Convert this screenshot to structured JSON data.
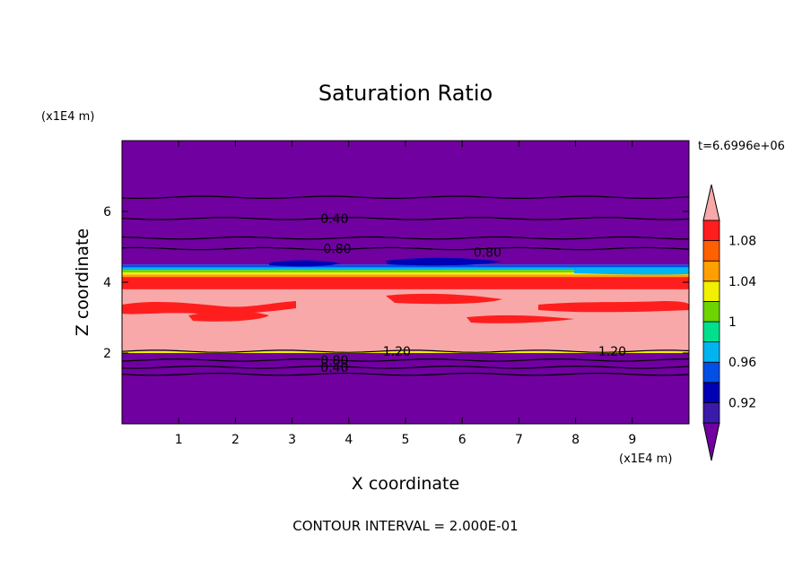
{
  "chart_data": {
    "type": "heatmap",
    "title": "Saturation Ratio",
    "xlabel": "X coordinate",
    "ylabel": "Z coordinate",
    "x_unit": "(x1E4 m)",
    "z_unit": "(x1E4 m)",
    "xlim": [
      0,
      10
    ],
    "ylim": [
      0,
      8
    ],
    "x_ticks": [
      "1",
      "2",
      "3",
      "4",
      "5",
      "6",
      "7",
      "8",
      "9"
    ],
    "y_ticks": [
      "2",
      "4",
      "6"
    ],
    "time_label": "t=6.6996e+06",
    "contour_interval_text": "CONTOUR INTERVAL = 2.000E-01",
    "colorbar": {
      "labels": [
        "0.92",
        "0.96",
        "1",
        "1.04",
        "1.08"
      ],
      "levels": [
        0.9,
        0.92,
        0.94,
        0.96,
        0.98,
        1.0,
        1.02,
        1.04,
        1.06,
        1.08,
        1.1
      ],
      "colors": [
        "#7000a0",
        "#3a1aa8",
        "#0000b4",
        "#0050e6",
        "#00b4f0",
        "#00e08c",
        "#6ed400",
        "#f0f000",
        "#ffa000",
        "#ff6000",
        "#ff1e1e",
        "#f8a8a8"
      ]
    },
    "layers": [
      {
        "z_bottom": 0.0,
        "z_top": 2.0,
        "color": "#7000a0"
      },
      {
        "z_bottom": 2.0,
        "z_top": 2.05,
        "color": "#f0f000"
      },
      {
        "z_bottom": 2.05,
        "z_top": 3.8,
        "color": "#f8a8a8"
      },
      {
        "z_bottom": 3.8,
        "z_top": 4.15,
        "color": "#ff1e1e"
      },
      {
        "z_bottom": 4.15,
        "z_top": 4.22,
        "color": "#ffa000"
      },
      {
        "z_bottom": 4.22,
        "z_top": 4.28,
        "color": "#f0f000"
      },
      {
        "z_bottom": 4.28,
        "z_top": 4.35,
        "color": "#6ed400"
      },
      {
        "z_bottom": 4.35,
        "z_top": 4.42,
        "color": "#00b4f0"
      },
      {
        "z_bottom": 4.42,
        "z_top": 4.5,
        "color": "#0050e6"
      },
      {
        "z_bottom": 4.5,
        "z_top": 8.0,
        "color": "#7000a0"
      }
    ],
    "contour_lines": [
      {
        "z": 1.4,
        "label": ""
      },
      {
        "z": 1.6,
        "label": "0.40"
      },
      {
        "z": 1.8,
        "label": "0.80"
      },
      {
        "z": 2.05,
        "label": "1.20"
      },
      {
        "z": 4.95,
        "label": "0.80"
      },
      {
        "z": 5.25,
        "label": ""
      },
      {
        "z": 5.8,
        "label": "0.40"
      },
      {
        "z": 6.4,
        "label": ""
      }
    ]
  }
}
